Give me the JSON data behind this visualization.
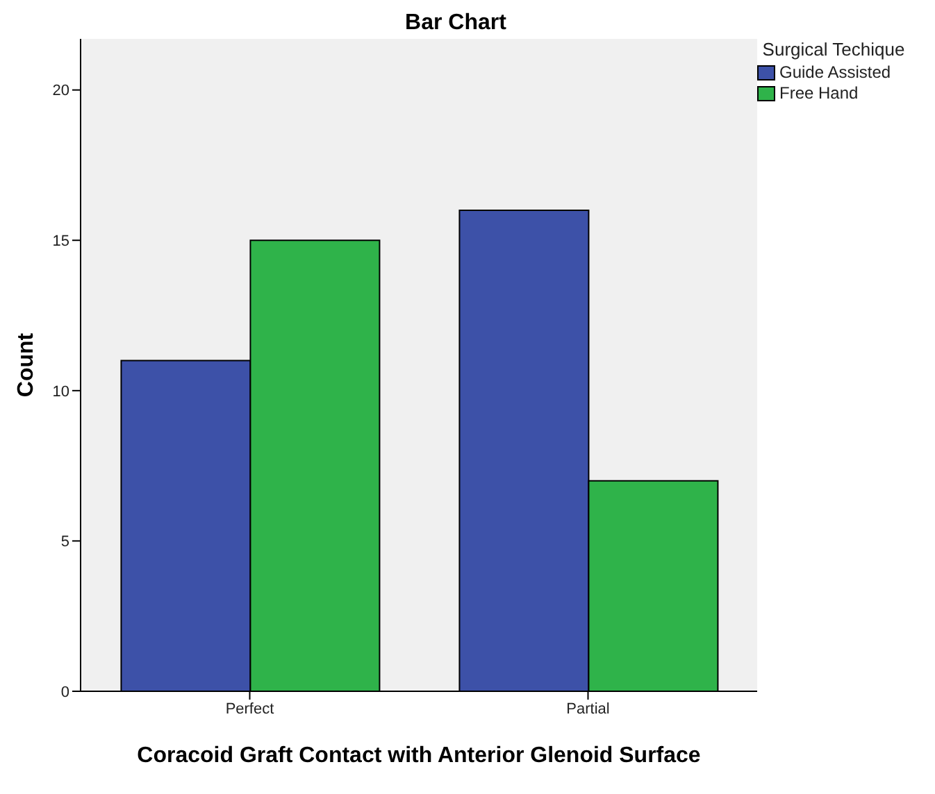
{
  "chart_data": {
    "type": "bar",
    "title": "Bar Chart",
    "xlabel": "Coracoid Graft Contact with Anterior Glenoid Surface",
    "ylabel": "Count",
    "legend_title": "Surgical Techique",
    "categories": [
      "Perfect",
      "Partial"
    ],
    "series": [
      {
        "name": "Guide Assisted",
        "color": "#3d51a8",
        "values": [
          11,
          16
        ]
      },
      {
        "name": "Free Hand",
        "color": "#2fb34a",
        "values": [
          15,
          7
        ]
      }
    ],
    "ylim": [
      0,
      21.7
    ],
    "yticks": [
      0,
      5,
      10,
      15,
      20
    ],
    "grid": false,
    "legend": "top right"
  }
}
